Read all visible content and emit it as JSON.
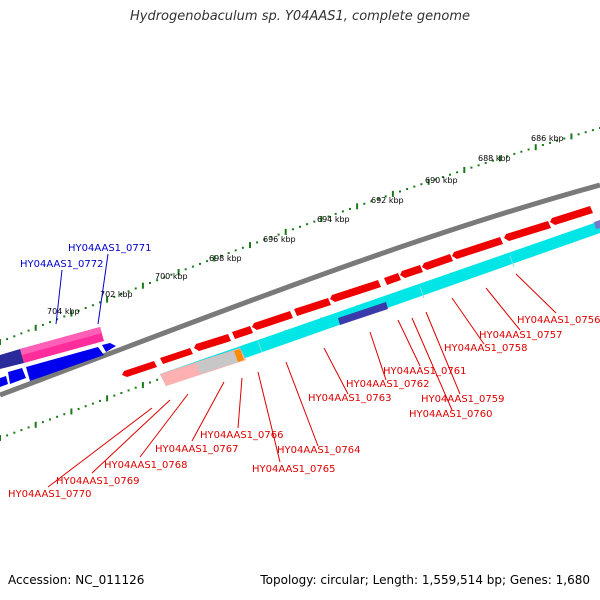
{
  "title": "Hydrogenobaculum sp. Y04AAS1, complete genome",
  "footer": {
    "accession": "Accession: NC_011126",
    "summary": "Topology: circular; Length: 1,559,514 bp; Genes: 1,680"
  },
  "colors": {
    "forward_label": "#0000cc",
    "reverse_label": "#dd0000",
    "reverse_gene": "#ee0000",
    "forward_gene": "#0000ee",
    "cds_track": "#00e5e5",
    "backbone": "#808080",
    "tick": "#1a7a1a"
  },
  "scale_labels": [
    "686 kbp",
    "688 kbp",
    "690 kbp",
    "692 kbp",
    "694 kbp",
    "696 kbp",
    "698 kbp",
    "700 kbp",
    "702 kbp",
    "704 kbp"
  ],
  "forward_genes": [
    "HY04AAS1_0771",
    "HY04AAS1_0772"
  ],
  "reverse_genes": [
    "HY04AAS1_0756",
    "HY04AAS1_0757",
    "HY04AAS1_0758",
    "HY04AAS1_0761",
    "HY04AAS1_0762",
    "HY04AAS1_0763",
    "HY04AAS1_0759",
    "HY04AAS1_0760",
    "HY04AAS1_0766",
    "HY04AAS1_0767",
    "HY04AAS1_0764",
    "HY04AAS1_0768",
    "HY04AAS1_0765",
    "HY04AAS1_0769",
    "HY04AAS1_0770"
  ]
}
